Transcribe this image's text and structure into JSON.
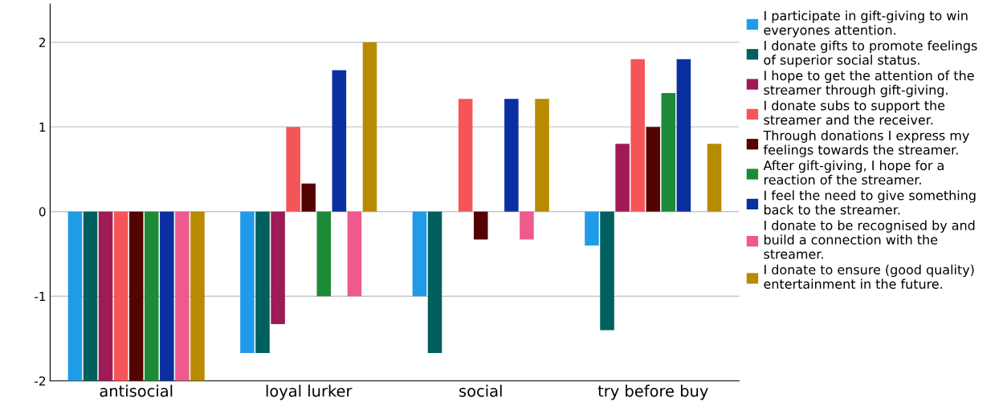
{
  "chart_data": {
    "type": "bar",
    "categories": [
      "antisocial",
      "loyal lurker",
      "social",
      "try before buy"
    ],
    "series": [
      {
        "name": "I participate in gift-giving to win\neveryones attention.",
        "color": "#1f9be8",
        "values": [
          -2,
          -1.67,
          -1,
          -0.4
        ]
      },
      {
        "name": "I donate gifts to promote feelings\nof superior social status.",
        "color": "#00605e",
        "values": [
          -2,
          -1.67,
          -1.67,
          -1.4
        ]
      },
      {
        "name": "I hope to get the attention of the\nstreamer through gift-giving.",
        "color": "#9e1b55",
        "values": [
          -2,
          -1.33,
          0,
          0.8
        ]
      },
      {
        "name": "I donate subs to support the\nstreamer and the receiver.",
        "color": "#f55458",
        "values": [
          -2,
          1,
          1.33,
          1.8
        ]
      },
      {
        "name": "Through donations I express my\nfeelings towards the streamer.",
        "color": "#540303",
        "values": [
          -2,
          0.33,
          -0.33,
          1
        ]
      },
      {
        "name": "After gift-giving, I hope for a\nreaction of the streamer.",
        "color": "#1d8a38",
        "values": [
          -2,
          -1,
          0,
          1.4
        ]
      },
      {
        "name": "I feel the need to give something\nback to the streamer.",
        "color": "#0a2fa0",
        "values": [
          -2,
          1.67,
          1.33,
          1.8
        ]
      },
      {
        "name": "I donate to be recognised by and\nbuild a connection with the\nstreamer.",
        "color": "#ee5a8e",
        "values": [
          -2,
          -1,
          -0.33,
          0
        ]
      },
      {
        "name": "I donate to ensure (good quality)\nentertainment in the future.",
        "color": "#b88a00",
        "values": [
          -2,
          2,
          1.33,
          0.8
        ]
      }
    ],
    "ylim": [
      -2,
      2.45
    ],
    "yticks": [
      -2,
      -1,
      0,
      1,
      2
    ],
    "grid": "y",
    "legend": "right"
  }
}
